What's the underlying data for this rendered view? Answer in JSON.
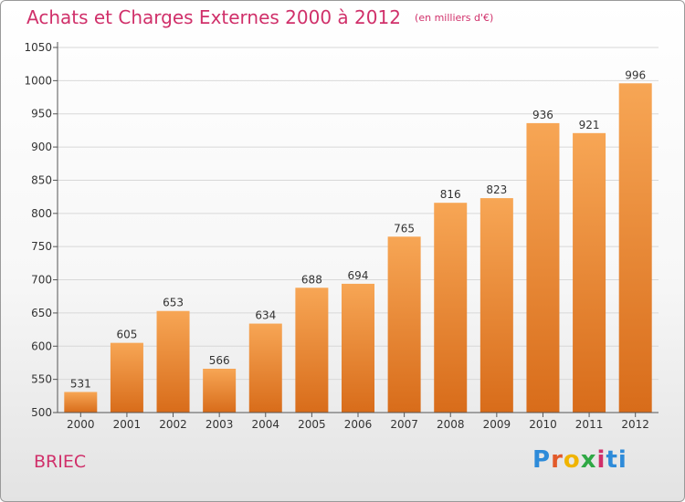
{
  "title": "Achats et Charges Externes 2000 à 2012",
  "unit_note": "(en milliers d'€)",
  "commune": "BRIEC",
  "logo_letters": [
    "P",
    "r",
    "o",
    "x",
    "i",
    "ti"
  ],
  "colors": {
    "title": "#d0306a",
    "bar_top": "#f7a655",
    "bar_bottom": "#d86c1a",
    "grid": "#d8d8d8",
    "axis": "#555555"
  },
  "chart_data": {
    "type": "bar",
    "title": "Achats et Charges Externes 2000 à 2012",
    "xlabel": "",
    "ylabel": "",
    "categories": [
      "2000",
      "2001",
      "2002",
      "2003",
      "2004",
      "2005",
      "2006",
      "2007",
      "2008",
      "2009",
      "2010",
      "2011",
      "2012"
    ],
    "values": [
      531,
      605,
      653,
      566,
      634,
      688,
      694,
      765,
      816,
      823,
      936,
      921,
      996
    ],
    "ylim": [
      500,
      1050
    ],
    "yticks": [
      500,
      550,
      600,
      650,
      700,
      750,
      800,
      850,
      900,
      950,
      1000,
      1050
    ],
    "grid": true,
    "legend": "none"
  }
}
